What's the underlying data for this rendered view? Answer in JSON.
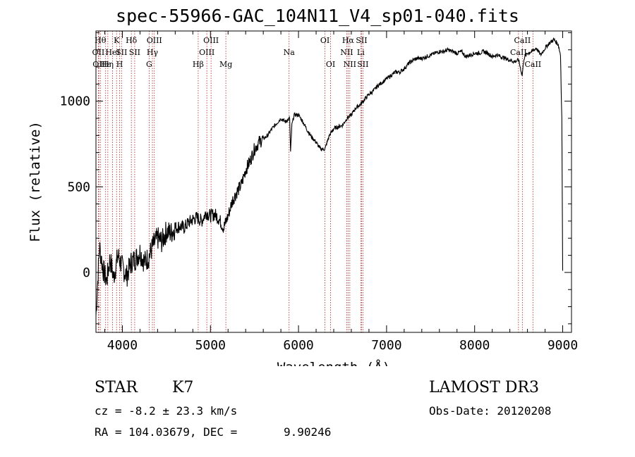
{
  "chart_data": {
    "type": "line",
    "title": "spec-55966-GAC_104N11_V4_sp01-040.fits",
    "xlabel": "Wavelength (Å)",
    "ylabel": "Flux (relative)",
    "xlim": [
      3700,
      9100
    ],
    "ylim": [
      -350,
      1410
    ],
    "xticks": [
      4000,
      5000,
      6000,
      7000,
      8000,
      9000
    ],
    "yticks": [
      0,
      500,
      1000
    ],
    "x_minor_step": 200,
    "y_minor_step": 100,
    "series": [
      {
        "name": "flux",
        "x": [
          3700,
          3740,
          3780,
          3820,
          3860,
          3900,
          3950,
          4000,
          4050,
          4100,
          4150,
          4200,
          4250,
          4300,
          4350,
          4400,
          4450,
          4500,
          4550,
          4600,
          4650,
          4700,
          4750,
          4800,
          4850,
          4900,
          4950,
          5000,
          5050,
          5100,
          5150,
          5200,
          5250,
          5300,
          5350,
          5400,
          5450,
          5500,
          5550,
          5600,
          5650,
          5700,
          5750,
          5800,
          5850,
          5900,
          5910,
          5925,
          5950,
          6000,
          6050,
          6100,
          6150,
          6200,
          6250,
          6300,
          6350,
          6400,
          6450,
          6500,
          6550,
          6600,
          6650,
          6700,
          6750,
          6800,
          6850,
          6900,
          6950,
          7000,
          7050,
          7100,
          7150,
          7200,
          7250,
          7300,
          7350,
          7400,
          7450,
          7500,
          7550,
          7600,
          7650,
          7700,
          7750,
          7800,
          7850,
          7900,
          7950,
          8000,
          8050,
          8100,
          8150,
          8200,
          8250,
          8300,
          8350,
          8400,
          8450,
          8500,
          8540,
          8560,
          8600,
          8650,
          8700,
          8750,
          8800,
          8850,
          8900,
          8950,
          8975,
          8990,
          9000
        ],
        "y": [
          -250,
          150,
          20,
          -50,
          80,
          -30,
          100,
          30,
          -20,
          60,
          80,
          120,
          60,
          90,
          160,
          200,
          180,
          240,
          230,
          260,
          270,
          260,
          290,
          310,
          320,
          300,
          350,
          330,
          340,
          310,
          260,
          330,
          420,
          470,
          510,
          600,
          650,
          720,
          760,
          780,
          800,
          840,
          870,
          900,
          880,
          900,
          700,
          860,
          920,
          920,
          880,
          830,
          790,
          760,
          720,
          720,
          800,
          840,
          850,
          860,
          900,
          920,
          960,
          980,
          1010,
          1040,
          1060,
          1090,
          1110,
          1130,
          1150,
          1170,
          1170,
          1190,
          1220,
          1240,
          1250,
          1250,
          1260,
          1270,
          1280,
          1290,
          1290,
          1300,
          1290,
          1280,
          1290,
          1260,
          1270,
          1280,
          1280,
          1290,
          1280,
          1260,
          1270,
          1260,
          1250,
          1240,
          1230,
          1240,
          1150,
          1250,
          1280,
          1290,
          1310,
          1270,
          1310,
          1340,
          1360,
          1330,
          1270,
          900,
          10
        ]
      }
    ],
    "lines": [
      {
        "wl": 3750,
        "label": "Hθ",
        "row": 1
      },
      {
        "wl": 3727,
        "label": "OII",
        "row": 2
      },
      {
        "wl": 3733,
        "label": "OII",
        "row": 3
      },
      {
        "wl": 3810,
        "label": "Hε",
        "row": 3
      },
      {
        "wl": 3835,
        "label": "Hη",
        "row": 3
      },
      {
        "wl": 3889,
        "label": "HeI",
        "row": 2
      },
      {
        "wl": 3934,
        "label": "K",
        "row": 1
      },
      {
        "wl": 3969,
        "label": "H",
        "row": 3
      },
      {
        "wl": 3990,
        "label": "SII",
        "row": 2
      },
      {
        "wl": 4102,
        "label": "Hδ",
        "row": 1
      },
      {
        "wl": 4140,
        "label": "SII",
        "row": 2
      },
      {
        "wl": 4304,
        "label": "G",
        "row": 3
      },
      {
        "wl": 4341,
        "label": "Hγ",
        "row": 2
      },
      {
        "wl": 4363,
        "label": "OIII",
        "row": 1
      },
      {
        "wl": 4861,
        "label": "Hβ",
        "row": 3
      },
      {
        "wl": 4959,
        "label": "OIII",
        "row": 2
      },
      {
        "wl": 5007,
        "label": "OIII",
        "row": 1
      },
      {
        "wl": 5175,
        "label": "Mg",
        "row": 3
      },
      {
        "wl": 5893,
        "label": "Na",
        "row": 2
      },
      {
        "wl": 6300,
        "label": "OI",
        "row": 1
      },
      {
        "wl": 6364,
        "label": "OI",
        "row": 3
      },
      {
        "wl": 6548,
        "label": "NII",
        "row": 2
      },
      {
        "wl": 6563,
        "label": "Hα",
        "row": 1
      },
      {
        "wl": 6583,
        "label": "NII",
        "row": 3
      },
      {
        "wl": 6707,
        "label": "Li",
        "row": 2
      },
      {
        "wl": 6716,
        "label": "SII",
        "row": 1
      },
      {
        "wl": 6731,
        "label": "SII",
        "row": 3
      },
      {
        "wl": 8498,
        "label": "CaII",
        "row": 2
      },
      {
        "wl": 8542,
        "label": "CaII",
        "row": 1
      },
      {
        "wl": 8662,
        "label": "CaII",
        "row": 3
      }
    ]
  },
  "footer": {
    "object_class": "STAR",
    "spectral_type": "K7",
    "survey": "LAMOST DR3",
    "cz": "cz = -8.2 ± 23.3 km/s",
    "obs_date": "Obs-Date: 20120208",
    "ra_dec": "RA = 104.03679, DEC =",
    "dec_value": "9.90246"
  }
}
